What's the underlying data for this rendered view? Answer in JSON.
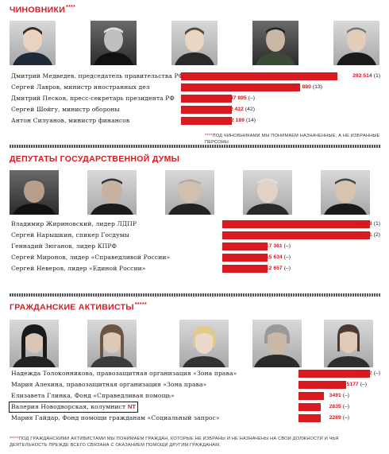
{
  "colors": {
    "accent": "#d71920",
    "text": "#1a1a1a"
  },
  "sections": [
    {
      "title": "Чиновники",
      "stars": "****",
      "people": [
        {
          "label": "Дмитрий Медведев, председатель правительства РФ",
          "value": 292514,
          "value_text": "292 514",
          "rank": "(1)"
        },
        {
          "label": "Сергей Лавров, министр иностранных дел",
          "value": 93880,
          "value_text": "93 880",
          "rank": "(13)"
        },
        {
          "label": "Дмитрий Песков, пресс-секретарь президента РФ",
          "value": 47895,
          "value_text": "47 895",
          "rank": "(–)"
        },
        {
          "label": "Сергей Шойгу, министр обороны",
          "value": 42422,
          "value_text": "42 422",
          "rank": "(42)"
        },
        {
          "label": "Антон Силуанов, министр финансов",
          "value": 22189,
          "value_text": "22 189",
          "rank": "(14)"
        }
      ],
      "footnote_star": "****",
      "footnote": "Под чиновниками мы понимаем назначенные, а не избранные персоны."
    },
    {
      "title": "Депутаты Государственной думы",
      "stars": "",
      "people": [
        {
          "label": "Владимир Жириновский, лидер ЛДПР",
          "value": 38058,
          "value_text": "38 058",
          "rank": "(1)"
        },
        {
          "label": "Сергей Нарышкин, спикер Госдумы",
          "value": 35611,
          "value_text": "35 611",
          "rank": "(2)"
        },
        {
          "label": "Геннадий Зюганов, лидер КПРФ",
          "value": 17361,
          "value_text": "17 361",
          "rank": "(–)"
        },
        {
          "label": "Сергей Миронов, лидер «Справедливой России»",
          "value": 15634,
          "value_text": "15 634",
          "rank": "(–)"
        },
        {
          "label": "Сергей Неверов, лидер «Единой России»",
          "value": 12657,
          "value_text": "12 657",
          "rank": "(–)"
        }
      ]
    },
    {
      "title": "Гражданские активисты",
      "stars": "*****",
      "people": [
        {
          "label": "Надежда Толоконникова, правозащитная организация «Зона права»",
          "value": 7692,
          "value_text": "7692",
          "rank": "(–)"
        },
        {
          "label": "Мария Алехина, правозащитная организация «Зона права»",
          "value": 5177,
          "value_text": "5177",
          "rank": "(–)"
        },
        {
          "label": "Елизавета Глинка, Фонд «Справедливая помощь»",
          "value": 3491,
          "value_text": "3491",
          "rank": "(–)"
        },
        {
          "label": "Валерия Новодворская, колумнист",
          "label_extra": "NT",
          "value": 2835,
          "value_text": "2835",
          "rank": "(–)"
        },
        {
          "label": "Мария Гайдар, Фонд помощи гражданам «Социальный запрос»",
          "value": 2289,
          "value_text": "2289",
          "rank": "(–)"
        }
      ],
      "footnote_star": "*****",
      "footnote": "Под гражданскими активистами мы понимаем граждан, которые не избраны и не назначены на свои должности и чья деятельность прежде всего связана с оказанием помощи другим гражданам."
    }
  ]
}
